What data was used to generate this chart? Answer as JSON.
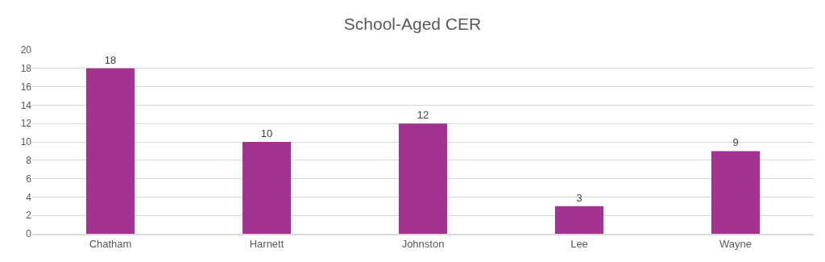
{
  "chart_data": {
    "type": "bar",
    "title": "School-Aged CER",
    "categories": [
      "Chatham",
      "Harnett",
      "Johnston",
      "Lee",
      "Wayne"
    ],
    "values": [
      18,
      10,
      12,
      3,
      9
    ],
    "color": "#a23391",
    "ylim": [
      0,
      20
    ],
    "yticks": [
      0,
      2,
      4,
      6,
      8,
      10,
      12,
      14,
      16,
      18,
      20
    ],
    "grid": "y",
    "data_labels": true
  }
}
